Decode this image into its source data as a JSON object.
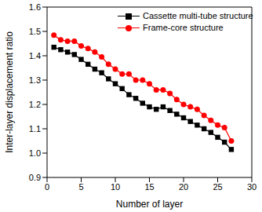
{
  "chart_data": {
    "type": "line",
    "x_label": "Number of layer",
    "y_label": "Inter-layer displacement ratio",
    "x": [
      1,
      2,
      3,
      4,
      5,
      6,
      7,
      8,
      9,
      10,
      11,
      12,
      13,
      14,
      15,
      16,
      17,
      18,
      19,
      20,
      21,
      22,
      23,
      24,
      25,
      26,
      27
    ],
    "series": [
      {
        "name": "Cassette multi-tube structure",
        "color": "#000000",
        "marker": "square",
        "line_style": "solid",
        "values": [
          1.435,
          1.425,
          1.415,
          1.405,
          1.385,
          1.365,
          1.345,
          1.33,
          1.305,
          1.285,
          1.265,
          1.24,
          1.225,
          1.205,
          1.19,
          1.18,
          1.19,
          1.175,
          1.16,
          1.145,
          1.13,
          1.115,
          1.1,
          1.085,
          1.065,
          1.045,
          1.015
        ]
      },
      {
        "name": "Frame-core structure",
        "color": "#ff0000",
        "marker": "circle",
        "line_style": "solid",
        "values": [
          1.485,
          1.465,
          1.46,
          1.46,
          1.44,
          1.43,
          1.415,
          1.395,
          1.365,
          1.345,
          1.325,
          1.325,
          1.3,
          1.3,
          1.285,
          1.26,
          1.26,
          1.245,
          1.22,
          1.2,
          1.19,
          1.18,
          1.155,
          1.135,
          1.115,
          1.105,
          1.05
        ]
      }
    ],
    "xlim": [
      0,
      30
    ],
    "xticks": [
      0,
      5,
      10,
      15,
      20,
      25,
      30
    ],
    "ylim": [
      0.9,
      1.6
    ],
    "yticks": [
      0.9,
      {
        "value": 1.0,
        "label": "1.0"
      },
      1.1,
      1.2,
      1.3,
      1.4,
      1.5,
      1.6
    ],
    "grid": false,
    "legend": "upper right"
  }
}
